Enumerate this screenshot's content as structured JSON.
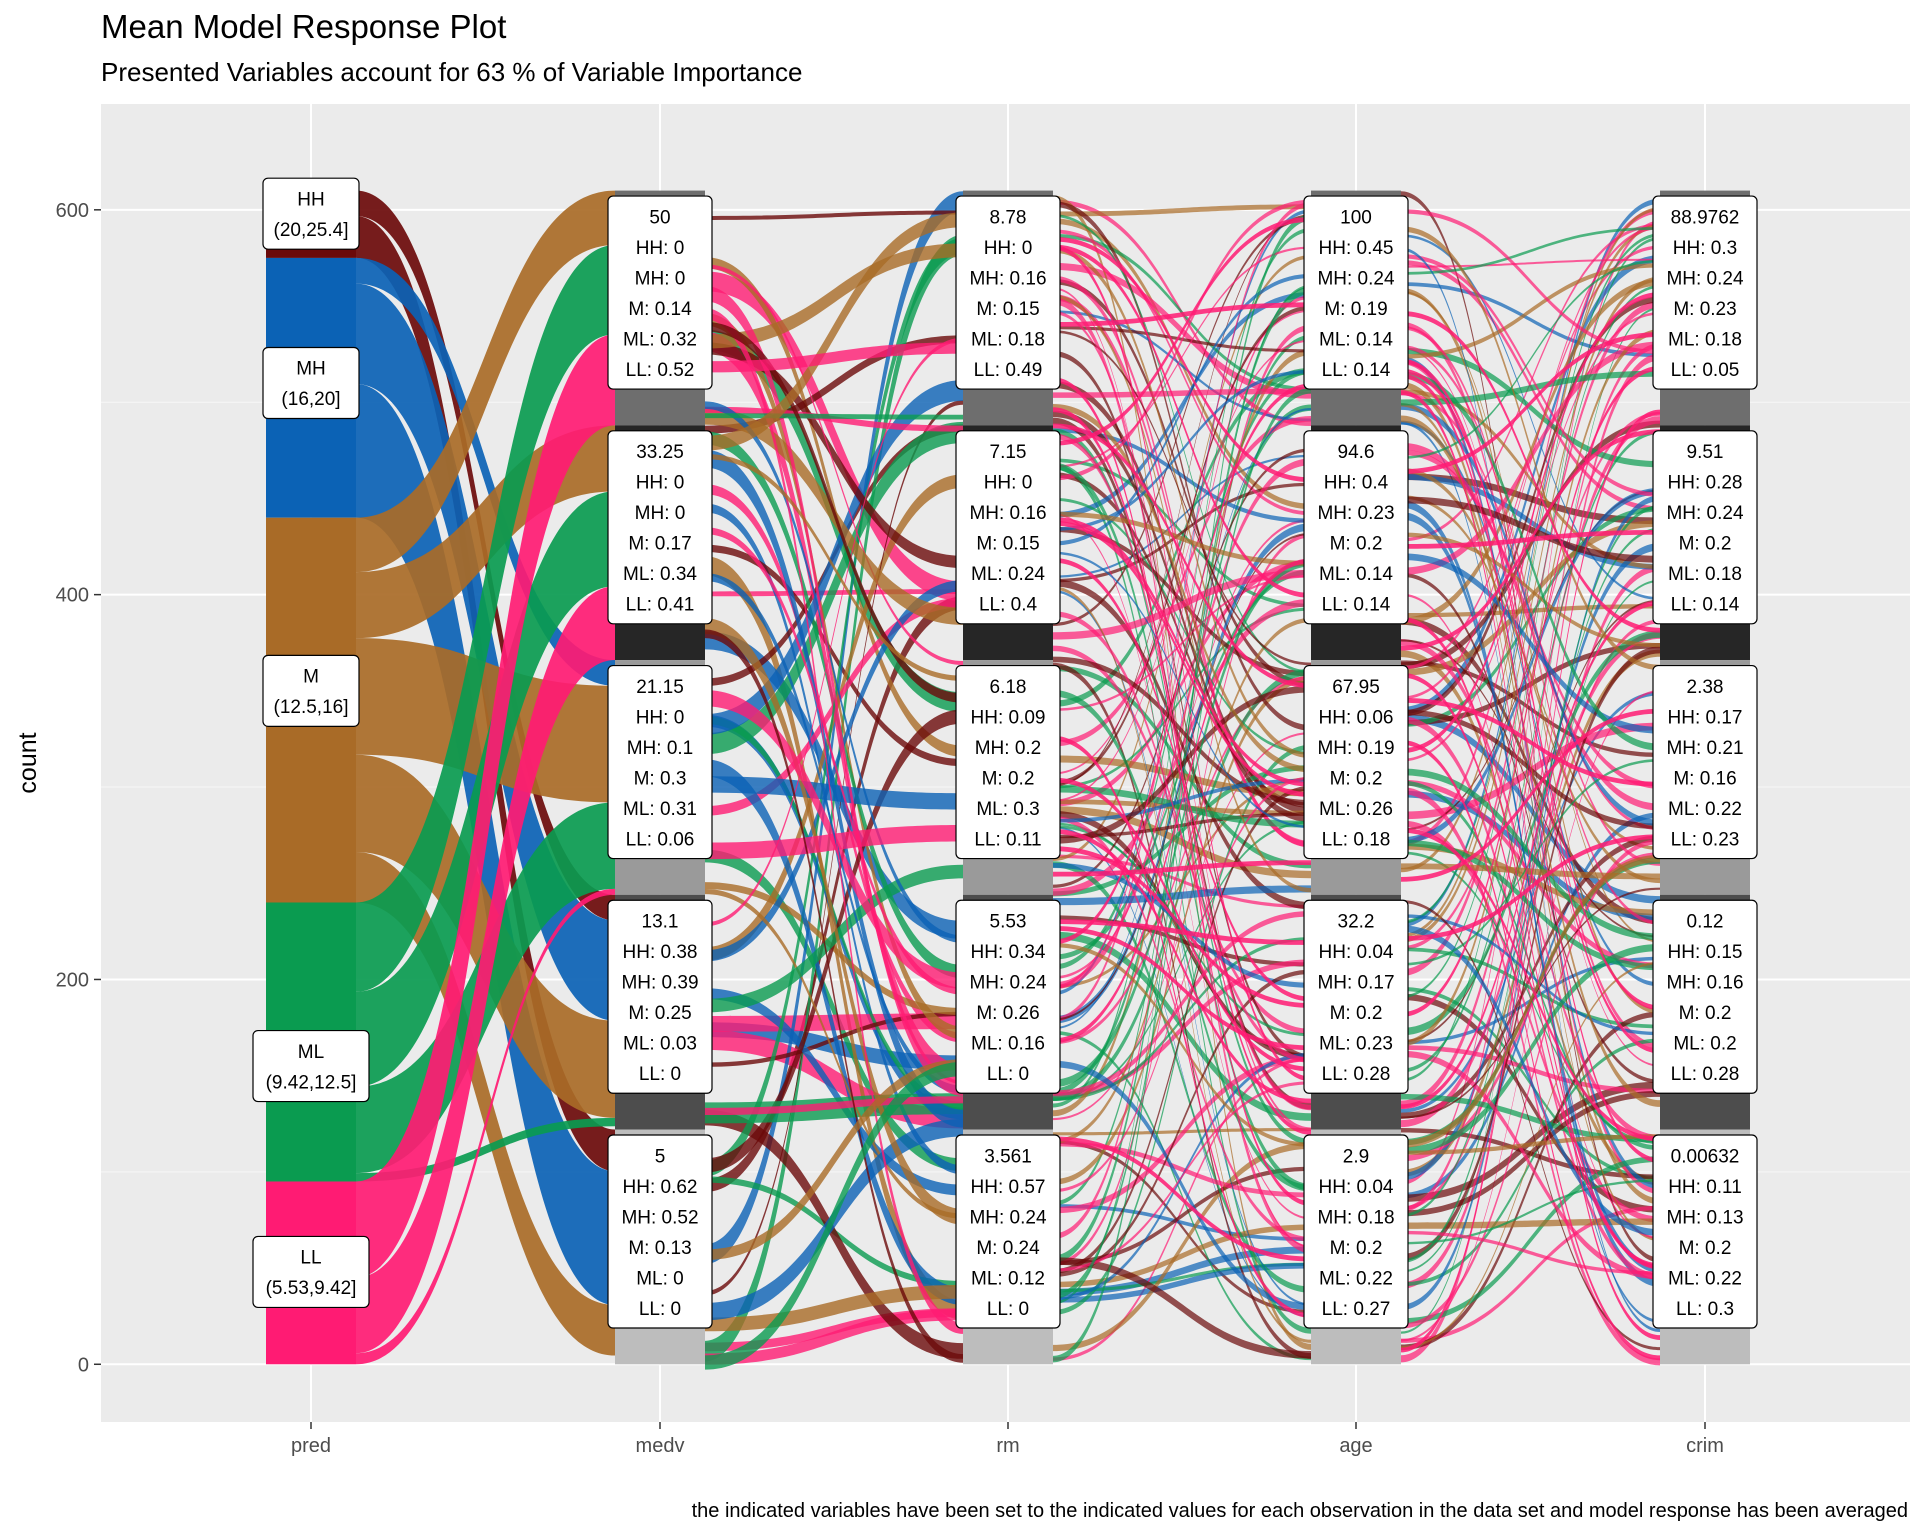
{
  "chart_data": {
    "type": "alluvial",
    "title": "Mean Model Response Plot",
    "subtitle": "Presented Variables account for 63 % of Variable Importance",
    "caption": "the indicated variables have been set to the indicated values for each observation in the data set and model response has been averaged",
    "ylabel": "count",
    "xlabel": "",
    "ylim": [
      -30,
      655
    ],
    "yticks": [
      0,
      200,
      400,
      600
    ],
    "x": [
      "pred",
      "medv",
      "rm",
      "age",
      "crim"
    ],
    "colors": {
      "HH": "#6b0a0a",
      "MH": "#0b62b5",
      "M": "#a96b27",
      "ML": "#0a9b50",
      "LL": "#ff1b73",
      "panel": "#ebebeb",
      "grid": "#ffffff"
    },
    "pred_strata": [
      {
        "class": "HH",
        "label": "HH",
        "range": "(20,25.4]",
        "count": 35
      },
      {
        "class": "MH",
        "label": "MH",
        "range": "(16,20]",
        "count": 135
      },
      {
        "class": "M",
        "label": "M",
        "range": "(12.5,16]",
        "count": 200
      },
      {
        "class": "ML",
        "label": "ML",
        "range": "(9.42,12.5]",
        "count": 145
      },
      {
        "class": "LL",
        "label": "LL",
        "range": "(5.53,9.42]",
        "count": 95
      }
    ],
    "series": [
      {
        "name": "medv",
        "strata": [
          {
            "value": "50",
            "HH": 0,
            "MH": 0,
            "M": 0.14,
            "ML": 0.32,
            "LL": 0.52
          },
          {
            "value": "33.25",
            "HH": 0,
            "MH": 0,
            "M": 0.17,
            "ML": 0.34,
            "LL": 0.41
          },
          {
            "value": "21.15",
            "HH": 0,
            "MH": 0.1,
            "M": 0.3,
            "ML": 0.31,
            "LL": 0.06
          },
          {
            "value": "13.1",
            "HH": 0.38,
            "MH": 0.39,
            "M": 0.25,
            "ML": 0.03,
            "LL": 0
          },
          {
            "value": "5",
            "HH": 0.62,
            "MH": 0.52,
            "M": 0.13,
            "ML": 0,
            "LL": 0
          }
        ]
      },
      {
        "name": "rm",
        "strata": [
          {
            "value": "8.78",
            "HH": 0,
            "MH": 0.16,
            "M": 0.15,
            "ML": 0.18,
            "LL": 0.49
          },
          {
            "value": "7.15",
            "HH": 0,
            "MH": 0.16,
            "M": 0.15,
            "ML": 0.24,
            "LL": 0.4
          },
          {
            "value": "6.18",
            "HH": 0.09,
            "MH": 0.2,
            "M": 0.2,
            "ML": 0.3,
            "LL": 0.11
          },
          {
            "value": "5.53",
            "HH": 0.34,
            "MH": 0.24,
            "M": 0.26,
            "ML": 0.16,
            "LL": 0
          },
          {
            "value": "3.561",
            "HH": 0.57,
            "MH": 0.24,
            "M": 0.24,
            "ML": 0.12,
            "LL": 0
          }
        ]
      },
      {
        "name": "age",
        "strata": [
          {
            "value": "100",
            "HH": 0.45,
            "MH": 0.24,
            "M": 0.19,
            "ML": 0.14,
            "LL": 0.14
          },
          {
            "value": "94.6",
            "HH": 0.4,
            "MH": 0.23,
            "M": 0.2,
            "ML": 0.14,
            "LL": 0.14
          },
          {
            "value": "67.95",
            "HH": 0.06,
            "MH": 0.19,
            "M": 0.2,
            "ML": 0.26,
            "LL": 0.18
          },
          {
            "value": "32.2",
            "HH": 0.04,
            "MH": 0.17,
            "M": 0.2,
            "ML": 0.23,
            "LL": 0.28
          },
          {
            "value": "2.9",
            "HH": 0.04,
            "MH": 0.18,
            "M": 0.2,
            "ML": 0.22,
            "LL": 0.27
          }
        ]
      },
      {
        "name": "crim",
        "strata": [
          {
            "value": "88.9762",
            "HH": 0.3,
            "MH": 0.24,
            "M": 0.23,
            "ML": 0.18,
            "LL": 0.05
          },
          {
            "value": "9.51",
            "HH": 0.28,
            "MH": 0.24,
            "M": 0.2,
            "ML": 0.18,
            "LL": 0.14
          },
          {
            "value": "2.38",
            "HH": 0.17,
            "MH": 0.21,
            "M": 0.16,
            "ML": 0.22,
            "LL": 0.23
          },
          {
            "value": "0.12",
            "HH": 0.15,
            "MH": 0.16,
            "M": 0.2,
            "ML": 0.2,
            "LL": 0.28
          },
          {
            "value": "0.00632",
            "HH": 0.11,
            "MH": 0.13,
            "M": 0.2,
            "ML": 0.22,
            "LL": 0.3
          }
        ]
      }
    ]
  }
}
